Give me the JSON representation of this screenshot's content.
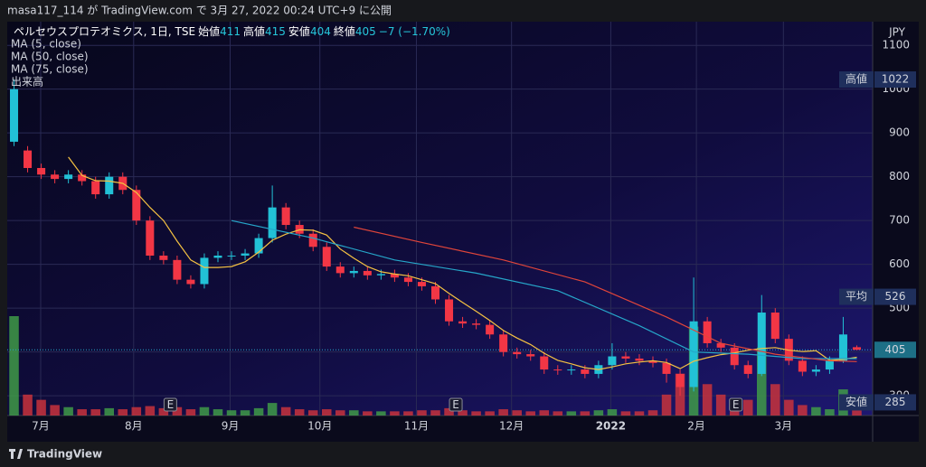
{
  "header": "masa117_114 が TradingView.com で 3月 27, 2022 00:24 UTC+9 に公開",
  "footer": "TradingView",
  "chart_data": {
    "type": "candlestick",
    "currency": "JPY",
    "legend": {
      "symbol": "ペルセウスプロテオミクス, 1日, TSE",
      "fields": [
        {
          "label": "始値",
          "value": 411
        },
        {
          "label": "高値",
          "value": 415
        },
        {
          "label": "安値",
          "value": 404
        },
        {
          "label": "終値",
          "value": 405
        }
      ],
      "change": "−7 (−1.70%)",
      "indicators": [
        "MA (5, close)",
        "MA (50, close)",
        "MA (75, close)",
        "出来高"
      ]
    },
    "earnings_marker": "E",
    "earnings_x": [
      11.5,
      32.5,
      53.1
    ],
    "x": [
      0,
      1,
      2,
      3,
      4,
      5,
      6,
      7,
      8,
      9,
      10,
      11,
      12,
      13,
      14,
      15,
      16,
      17,
      18,
      19,
      20,
      21,
      22,
      23,
      24,
      25,
      26,
      27,
      28,
      29,
      30,
      31,
      32,
      33,
      34,
      35,
      36,
      37,
      38,
      39,
      40,
      41,
      42,
      43,
      44,
      45,
      46,
      47,
      48,
      49,
      50,
      51,
      52,
      53,
      54,
      55,
      56,
      57,
      58,
      59,
      60,
      61,
      62
    ],
    "open": [
      880,
      860,
      820,
      805,
      795,
      805,
      790,
      760,
      800,
      770,
      700,
      620,
      610,
      565,
      555,
      615,
      618,
      620,
      625,
      660,
      730,
      690,
      670,
      640,
      595,
      580,
      585,
      575,
      578,
      570,
      560,
      550,
      520,
      470,
      465,
      462,
      440,
      400,
      395,
      390,
      360,
      358,
      360,
      350,
      370,
      390,
      385,
      380,
      375,
      350,
      320,
      470,
      420,
      410,
      370,
      350,
      490,
      430,
      380,
      355,
      360,
      380,
      411
    ],
    "high": [
      1022,
      870,
      830,
      815,
      815,
      815,
      800,
      810,
      810,
      780,
      710,
      630,
      620,
      575,
      625,
      630,
      630,
      635,
      670,
      780,
      740,
      700,
      680,
      650,
      605,
      595,
      595,
      588,
      588,
      580,
      570,
      560,
      530,
      480,
      475,
      472,
      450,
      410,
      405,
      400,
      370,
      370,
      370,
      380,
      420,
      400,
      395,
      390,
      385,
      360,
      570,
      480,
      430,
      420,
      380,
      530,
      500,
      440,
      390,
      370,
      390,
      480,
      415
    ],
    "low": [
      870,
      810,
      795,
      785,
      785,
      780,
      750,
      750,
      760,
      690,
      610,
      600,
      555,
      545,
      545,
      605,
      610,
      610,
      615,
      650,
      680,
      660,
      630,
      585,
      570,
      570,
      565,
      565,
      560,
      550,
      540,
      510,
      460,
      455,
      452,
      430,
      390,
      385,
      380,
      350,
      348,
      348,
      340,
      340,
      360,
      375,
      370,
      365,
      330,
      300,
      310,
      410,
      400,
      360,
      340,
      345,
      420,
      370,
      345,
      345,
      350,
      375,
      404
    ],
    "close": [
      1000,
      820,
      805,
      795,
      805,
      790,
      760,
      800,
      770,
      700,
      620,
      610,
      565,
      555,
      615,
      620,
      620,
      625,
      660,
      730,
      690,
      670,
      640,
      595,
      580,
      585,
      575,
      578,
      570,
      560,
      550,
      520,
      470,
      465,
      462,
      440,
      400,
      395,
      390,
      360,
      358,
      360,
      350,
      370,
      390,
      385,
      380,
      375,
      350,
      320,
      470,
      420,
      410,
      370,
      350,
      490,
      430,
      380,
      355,
      360,
      380,
      440,
      405
    ],
    "volume": [
      95,
      20,
      15,
      10,
      8,
      6,
      6,
      7,
      6,
      8,
      9,
      7,
      8,
      6,
      8,
      6,
      5,
      5,
      7,
      12,
      8,
      6,
      5,
      6,
      5,
      5,
      4,
      4,
      4,
      4,
      5,
      5,
      7,
      5,
      4,
      4,
      6,
      5,
      4,
      5,
      4,
      4,
      4,
      5,
      6,
      4,
      4,
      5,
      20,
      40,
      85,
      30,
      20,
      10,
      15,
      65,
      30,
      15,
      10,
      8,
      6,
      25,
      5
    ],
    "up_color": "#22c1d6",
    "down_color": "#f23645",
    "volume_up_color": "#3f9a48",
    "volume_down_color": "#c8323c",
    "ma": [
      {
        "name": "MA (5, close)",
        "color": "#f5c242",
        "x": [
          4,
          5,
          6,
          7,
          8,
          9,
          10,
          11,
          12,
          13,
          14,
          15,
          16,
          17,
          18,
          19,
          20,
          21,
          22,
          23,
          24,
          25,
          26,
          27,
          28,
          29,
          30,
          31,
          32,
          33,
          34,
          35,
          36,
          37,
          38,
          39,
          40,
          41,
          42,
          43,
          44,
          45,
          46,
          47,
          48,
          49,
          50,
          51,
          52,
          53,
          54,
          55,
          56,
          57,
          58,
          59,
          60,
          61,
          62
        ],
        "values": [
          845,
          803,
          791,
          790,
          785,
          764,
          730,
          700,
          653,
          610,
          593,
          593,
          595,
          606,
          628,
          655,
          669,
          679,
          678,
          667,
          635,
          614,
          595,
          583,
          578,
          574,
          565,
          556,
          534,
          513,
          493,
          472,
          449,
          432,
          417,
          397,
          381,
          373,
          364,
          360,
          366,
          373,
          377,
          380,
          376,
          362,
          379,
          387,
          394,
          398,
          404,
          408,
          410,
          404,
          401,
          403,
          381,
          383,
          388
        ]
      },
      {
        "name": "MA (50, close)",
        "color": "#26a6c9",
        "x": [
          16,
          22,
          28,
          34,
          40,
          46,
          50,
          54,
          58,
          62
        ],
        "values": [
          700,
          660,
          610,
          580,
          540,
          460,
          400,
          395,
          385,
          385
        ]
      },
      {
        "name": "MA (75, close)",
        "color": "#e0453a",
        "x": [
          25,
          30,
          36,
          42,
          48,
          52,
          56,
          60,
          62
        ],
        "values": [
          685,
          650,
          610,
          560,
          480,
          420,
          395,
          380,
          378
        ]
      }
    ],
    "price_labels": [
      {
        "label": "高値",
        "value": 1022
      },
      {
        "label": "平均",
        "value": 526
      },
      {
        "label": "安値",
        "value": 285
      }
    ],
    "last_price": 405,
    "xlim": [
      -0.5,
      62.5
    ],
    "ylim": [
      255,
      1154
    ],
    "yticks": [
      300,
      400,
      500,
      600,
      700,
      800,
      900,
      1000,
      1100
    ],
    "xticks": [
      {
        "value": 1.96,
        "label": "7月"
      },
      {
        "value": 8.8,
        "label": "8月"
      },
      {
        "value": 15.9,
        "label": "9月"
      },
      {
        "value": 22.5,
        "label": "10月"
      },
      {
        "value": 29.6,
        "label": "11月"
      },
      {
        "value": 36.6,
        "label": "12月"
      },
      {
        "value": 43.9,
        "label": "2022"
      },
      {
        "value": 50.2,
        "label": "2月"
      },
      {
        "value": 56.6,
        "label": "3月"
      }
    ],
    "grid": true
  }
}
